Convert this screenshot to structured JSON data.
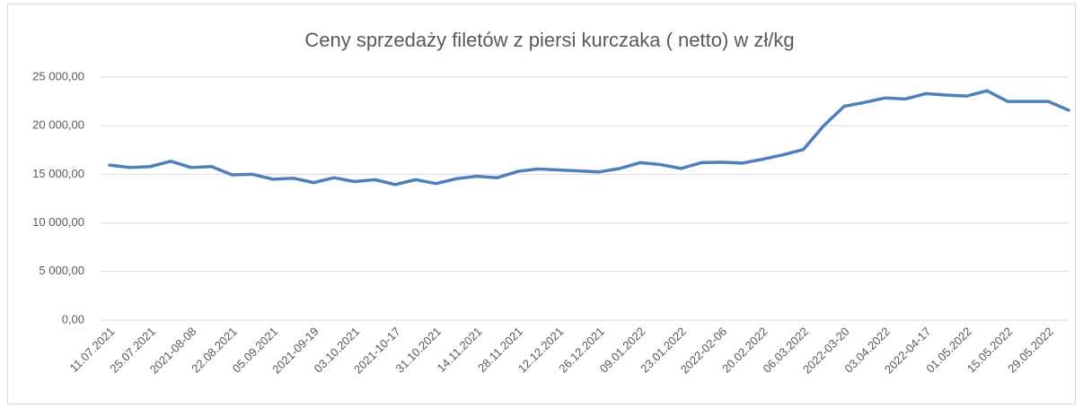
{
  "chart_data": {
    "type": "line",
    "title": "Ceny sprzedaży filetów z piersi kurczaka ( netto) w zł/kg",
    "categories": [
      "11.07.2021",
      null,
      "25.07.2021",
      null,
      "2021-08-08",
      null,
      "22.08.2021",
      null,
      "05.09.2021",
      null,
      "2021-09-19",
      null,
      "03.10.2021",
      null,
      "2021-10-17",
      null,
      "31.10.2021",
      null,
      "14.11.2021",
      null,
      "28.11.2021",
      null,
      "12.12.2021",
      null,
      "26.12.2021",
      null,
      "09.01.2022",
      null,
      "23.01.2022",
      null,
      "2022-02-06",
      null,
      "20.02.2022",
      null,
      "06.03.2022",
      null,
      "2022-03-20",
      null,
      "03.04.2022",
      null,
      "2022-04-17",
      null,
      "01.05.2022",
      null,
      "15.05.2022",
      null,
      "29.05.2022",
      null
    ],
    "series": [
      {
        "color": "#4f7fbf",
        "values": [
          15950,
          15700,
          15800,
          16350,
          15700,
          15800,
          14950,
          15000,
          14500,
          14600,
          14150,
          14650,
          14250,
          14450,
          13950,
          14450,
          14050,
          14550,
          14800,
          14650,
          15300,
          15550,
          15450,
          15350,
          15250,
          15600,
          16200,
          16000,
          15600,
          16200,
          16250,
          16150,
          16550,
          17000,
          17550,
          20000,
          22000,
          22400,
          22850,
          22750,
          23300,
          23150,
          23050,
          23600,
          22500,
          22500,
          22500,
          21600
        ]
      }
    ],
    "ylim": [
      0,
      25000
    ],
    "yticks": [
      {
        "value": 0,
        "label": "0,00"
      },
      {
        "value": 5000,
        "label": "5 000,00"
      },
      {
        "value": 10000,
        "label": "10 000,00"
      },
      {
        "value": 15000,
        "label": "15 000,00"
      },
      {
        "value": 20000,
        "label": "20 000,00"
      },
      {
        "value": 25000,
        "label": "25 000,00"
      }
    ],
    "grid": true
  }
}
